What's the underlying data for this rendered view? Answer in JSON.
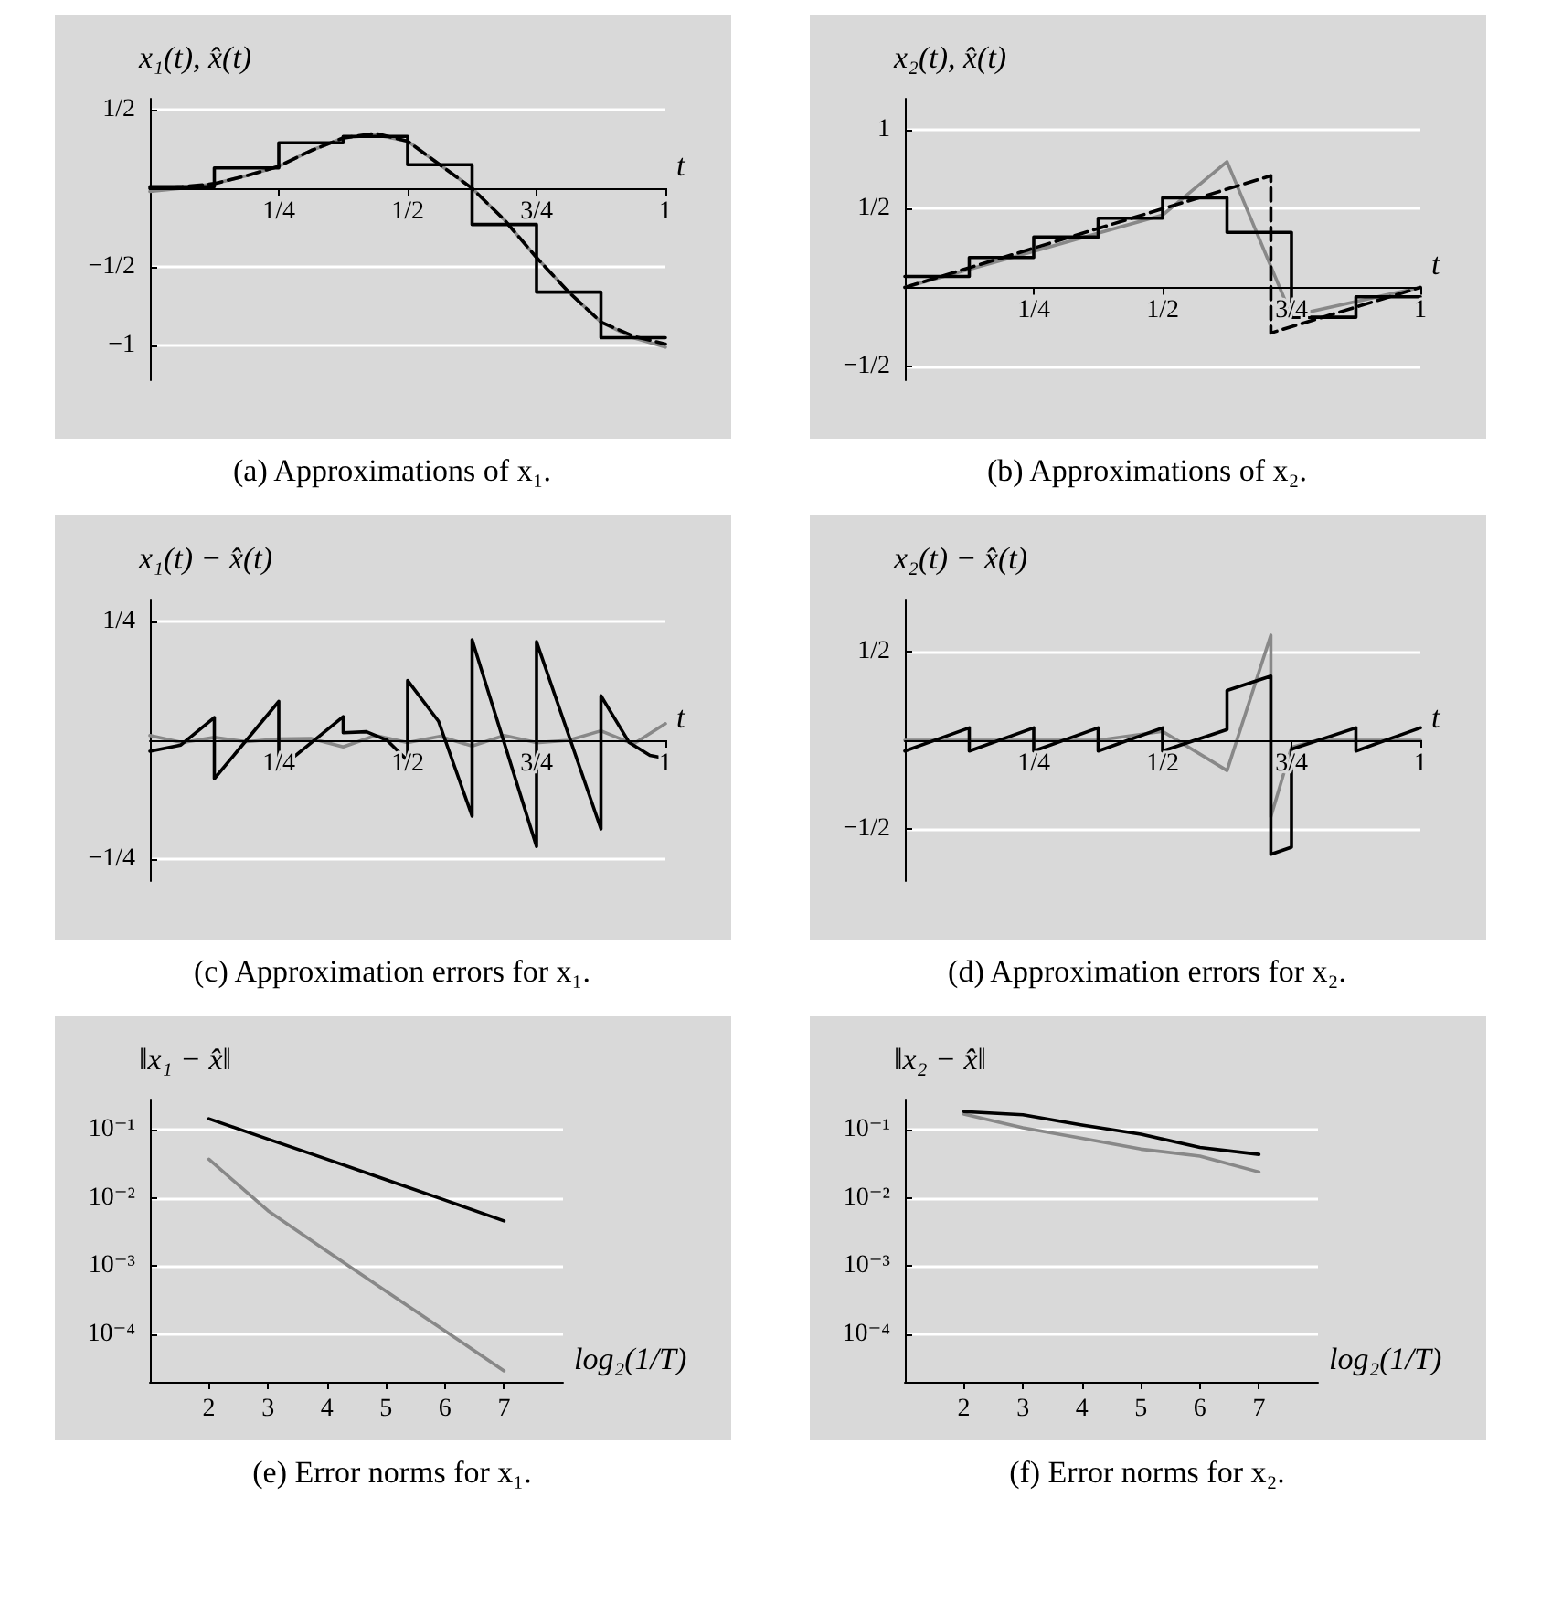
{
  "chart_data": [
    {
      "type": "line",
      "ylabel": "x₁(t), x̂(t)",
      "xlabel": "t",
      "annotations": [
        "(a) Approximations of x₁."
      ],
      "xlim": [
        0,
        1
      ],
      "ylim": [
        -1.22,
        0.57
      ],
      "xticks": [
        {
          "value": 0.25,
          "label": "1/4"
        },
        {
          "value": 0.5,
          "label": "1/2"
        },
        {
          "value": 0.75,
          "label": "3/4"
        },
        1
      ],
      "yticks": [
        {
          "value": -1,
          "label": "−1"
        },
        {
          "value": -0.5,
          "label": "−1/2"
        },
        {
          "value": 0.5,
          "label": "1/2"
        }
      ],
      "grid": "y",
      "series": [
        {
          "type": "line",
          "color": "#888888",
          "x": [
            0,
            0.0625,
            0.125,
            0.1875,
            0.25,
            0.3125,
            0.375,
            0.4375,
            0.5,
            0.5625,
            0.625,
            0.6875,
            0.75,
            0.8125,
            0.875,
            0.9375,
            1
          ],
          "values": [
            -0.02,
            0.0,
            0.03,
            0.08,
            0.14,
            0.24,
            0.32,
            0.34,
            0.3,
            0.15,
            0.0,
            -0.2,
            -0.44,
            -0.66,
            -0.85,
            -0.95,
            -1.01
          ]
        },
        {
          "type": "step",
          "color": "#000000",
          "x": [
            0,
            0.125,
            0.25,
            0.375,
            0.5,
            0.625,
            0.75,
            0.875,
            1
          ],
          "values": [
            0.01,
            0.13,
            0.29,
            0.33,
            0.15,
            -0.23,
            -0.66,
            -0.95,
            -0.95
          ]
        },
        {
          "type": "line",
          "color": "#000000",
          "line_style": "dashed",
          "x": [
            0,
            0.0625,
            0.125,
            0.1875,
            0.25,
            0.3125,
            0.375,
            0.4375,
            0.5,
            0.5625,
            0.625,
            0.6875,
            0.75,
            0.8125,
            0.875,
            0.9375,
            1
          ],
          "values": [
            0.0,
            0.01,
            0.03,
            0.08,
            0.14,
            0.24,
            0.32,
            0.35,
            0.3,
            0.15,
            0.0,
            -0.2,
            -0.44,
            -0.66,
            -0.85,
            -0.94,
            -0.99
          ]
        }
      ]
    },
    {
      "type": "line",
      "ylabel": "x₂(t), x̂(t)",
      "xlabel": "t",
      "annotations": [
        "(b) Approximations of x₂."
      ],
      "xlim": [
        0,
        1
      ],
      "ylim": [
        -0.59,
        1.2
      ],
      "xticks": [
        {
          "value": 0.25,
          "label": "1/4"
        },
        {
          "value": 0.5,
          "label": "1/2"
        },
        {
          "value": 0.75,
          "label": "3/4"
        },
        1
      ],
      "yticks": [
        {
          "value": -0.5,
          "label": "−1/2"
        },
        {
          "value": 0.5,
          "label": "1/2"
        },
        1
      ],
      "grid": "y",
      "series": [
        {
          "type": "line",
          "color": "#888888",
          "x": [
            0,
            0.25,
            0.5,
            0.625,
            0.75,
            1
          ],
          "values": [
            0,
            0.23,
            0.46,
            0.8,
            -0.18,
            0
          ]
        },
        {
          "type": "step",
          "color": "#000000",
          "x": [
            0,
            0.125,
            0.25,
            0.375,
            0.5,
            0.625,
            0.75,
            0.875,
            1
          ],
          "values": [
            0.07,
            0.19,
            0.32,
            0.44,
            0.57,
            0.35,
            -0.19,
            -0.06,
            -0.06
          ]
        },
        {
          "type": "line",
          "color": "#000000",
          "line_style": "dashed",
          "x": [
            0,
            0.71,
            0.71,
            1
          ],
          "values": [
            0,
            0.71,
            -0.29,
            0
          ]
        }
      ]
    },
    {
      "type": "line",
      "ylabel": "x₁(t) − x̂(t)",
      "xlabel": "t",
      "annotations": [
        "(c) Approximation errors for x₁."
      ],
      "xlim": [
        0,
        1
      ],
      "ylim": [
        -0.297,
        0.297
      ],
      "xticks": [
        {
          "value": 0.25,
          "label": "1/4"
        },
        {
          "value": 0.5,
          "label": "1/2"
        },
        {
          "value": 0.75,
          "label": "3/4"
        },
        1
      ],
      "yticks": [
        {
          "value": -0.25,
          "label": "−1/4"
        },
        {
          "value": 0.25,
          "label": "1/4"
        }
      ],
      "grid": "y",
      "series": [
        {
          "type": "line",
          "color": "#888888",
          "x": [
            0,
            0.0625,
            0.125,
            0.1875,
            0.25,
            0.3125,
            0.375,
            0.4375,
            0.5,
            0.5625,
            0.625,
            0.6875,
            0.75,
            0.8125,
            0.875,
            0.9375,
            1
          ],
          "values": [
            0.01,
            -0.005,
            0.006,
            -0.003,
            0.003,
            0.004,
            -0.014,
            0.01,
            -0.005,
            0.008,
            -0.012,
            0.01,
            -0.005,
            0.0,
            0.02,
            -0.008,
            0.035
          ]
        },
        {
          "type": "line",
          "color": "#000000",
          "x": [
            0,
            0.06,
            0.125,
            0.125,
            0.25,
            0.25,
            0.375,
            0.375,
            0.42,
            0.46,
            0.5,
            0.5,
            0.56,
            0.625,
            0.625,
            0.75,
            0.75,
            0.875,
            0.875,
            0.93,
            0.97,
            1
          ],
          "values": [
            -0.023,
            -0.01,
            0.048,
            -0.081,
            0.082,
            -0.061,
            0.05,
            0.016,
            0.018,
            0.0,
            -0.043,
            0.126,
            0.04,
            -0.16,
            0.212,
            -0.224,
            0.208,
            -0.187,
            0.094,
            -0.005,
            -0.032,
            -0.038
          ]
        }
      ]
    },
    {
      "type": "line",
      "ylabel": "x₂(t) − x̂(t)",
      "xlabel": "t",
      "annotations": [
        "(d) Approximation errors for x₂."
      ],
      "xlim": [
        0,
        1
      ],
      "ylim": [
        -0.79,
        0.79
      ],
      "xticks": [
        {
          "value": 0.25,
          "label": "1/4"
        },
        {
          "value": 0.5,
          "label": "1/2"
        },
        {
          "value": 0.75,
          "label": "3/4"
        },
        1
      ],
      "yticks": [
        {
          "value": -0.5,
          "label": "−1/2"
        },
        {
          "value": 0.5,
          "label": "1/2"
        }
      ],
      "grid": "y",
      "series": [
        {
          "type": "line",
          "color": "#888888",
          "x": [
            0,
            0.375,
            0.5,
            0.625,
            0.71,
            0.71,
            0.75,
            0.8,
            1
          ],
          "values": [
            0,
            0,
            0.05,
            -0.17,
            0.59,
            -0.43,
            -0.04,
            0,
            0
          ]
        },
        {
          "type": "line",
          "color": "#000000",
          "x": [
            0,
            0.125,
            0.125,
            0.25,
            0.25,
            0.375,
            0.375,
            0.5,
            0.5,
            0.625,
            0.625,
            0.71,
            0.71,
            0.75,
            0.75,
            0.875,
            0.875,
            1
          ],
          "values": [
            -0.06,
            0.07,
            -0.06,
            0.07,
            -0.06,
            0.07,
            -0.06,
            0.07,
            -0.06,
            0.06,
            0.28,
            0.36,
            -0.64,
            -0.6,
            -0.05,
            0.07,
            -0.06,
            0.07
          ]
        }
      ]
    },
    {
      "type": "line",
      "ylabel": "‖x₁ − x̂‖",
      "xlabel": "log₂(1/T)",
      "annotations": [
        "(e) Error norms for x₁."
      ],
      "log": "y",
      "xlim": [
        1,
        8
      ],
      "ylim": [
        2e-05,
        0.27
      ],
      "xticks": [
        2,
        3,
        4,
        5,
        6,
        7
      ],
      "yticks": [
        {
          "value": 0.1,
          "label": "10⁻¹"
        },
        {
          "value": 0.01,
          "label": "10⁻²"
        },
        {
          "value": 0.001,
          "label": "10⁻³"
        },
        {
          "value": 0.0001,
          "label": "10⁻⁴"
        }
      ],
      "grid": "y",
      "series": [
        {
          "color": "#000000",
          "x": [
            2,
            3,
            4,
            5,
            6,
            7
          ],
          "values": [
            0.145,
            0.073,
            0.037,
            0.0185,
            0.0093,
            0.0046
          ]
        },
        {
          "color": "#888888",
          "x": [
            2,
            3,
            4,
            5,
            6,
            7
          ],
          "values": [
            0.037,
            0.0065,
            0.00166,
            0.00043,
            0.000112,
            2.9e-05
          ]
        }
      ]
    },
    {
      "type": "line",
      "ylabel": "‖x₂ − x̂‖",
      "xlabel": "log₂(1/T)",
      "annotations": [
        "(f) Error norms for x₂."
      ],
      "log": "y",
      "xlim": [
        1,
        8
      ],
      "ylim": [
        2e-05,
        0.27
      ],
      "xticks": [
        2,
        3,
        4,
        5,
        6,
        7
      ],
      "yticks": [
        {
          "value": 0.1,
          "label": "10⁻¹"
        },
        {
          "value": 0.01,
          "label": "10⁻²"
        },
        {
          "value": 0.001,
          "label": "10⁻³"
        },
        {
          "value": 0.0001,
          "label": "10⁻⁴"
        }
      ],
      "grid": "y",
      "series": [
        {
          "color": "#888888",
          "x": [
            2,
            3,
            4,
            5,
            6,
            7
          ],
          "values": [
            0.17,
            0.107,
            0.075,
            0.052,
            0.041,
            0.024
          ]
        },
        {
          "color": "#000000",
          "x": [
            2,
            3,
            4,
            5,
            6,
            7
          ],
          "values": [
            0.185,
            0.166,
            0.117,
            0.086,
            0.055,
            0.0435
          ]
        }
      ]
    }
  ]
}
